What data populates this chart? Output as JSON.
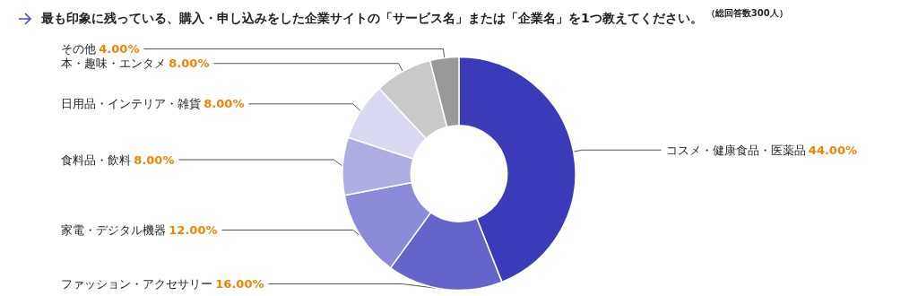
{
  "chart_data": {
    "type": "donut",
    "title": "最も印象に残っている、購入・申し込みをした企業サイトの「サービス名」または「企業名」を1つ教えてください。",
    "subtitle": "（総回答数300人）",
    "categories": [
      "コスメ・健康食品・医薬品",
      "ファッション・アクセサリー",
      "家電・デジタル機器",
      "食料品・飲料",
      "日用品・インテリア・雑貨",
      "本・趣味・エンタメ",
      "その他"
    ],
    "values": [
      44,
      16,
      12,
      8,
      8,
      8,
      4
    ],
    "value_labels": [
      "44.00%",
      "16.00%",
      "12.00%",
      "8.00%",
      "8.00%",
      "8.00%",
      "4.00%"
    ],
    "colors": [
      "#3b3bb9",
      "#6464c9",
      "#8b8bd9",
      "#aeaee4",
      "#d9d9f2",
      "#c9c9c9",
      "#999999"
    ],
    "legend": false
  }
}
